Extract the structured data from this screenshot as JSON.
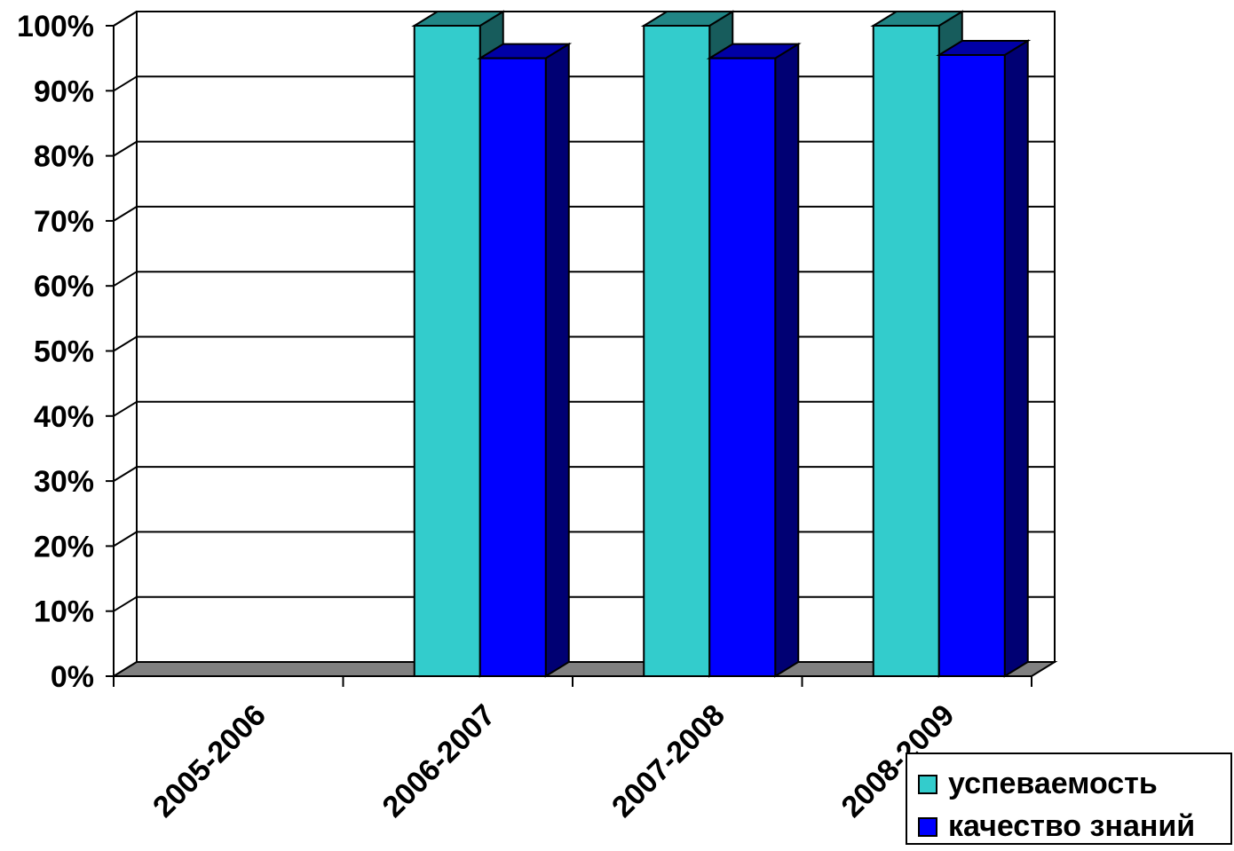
{
  "chart_data": {
    "type": "bar",
    "categories": [
      "2005-2006",
      "2006-2007",
      "2007-2008",
      "2008-2009"
    ],
    "series": [
      {
        "name": "успеваемость",
        "values": [
          0,
          100,
          100,
          100
        ],
        "color": "#33CCCC"
      },
      {
        "name": "качество знаний",
        "values": [
          0,
          95,
          95,
          95.5
        ],
        "color": "#0000FF"
      }
    ],
    "y_ticks": [
      "0%",
      "10%",
      "20%",
      "30%",
      "40%",
      "50%",
      "60%",
      "70%",
      "80%",
      "90%",
      "100%"
    ],
    "ylim": [
      0,
      100
    ],
    "title": "",
    "xlabel": "",
    "ylabel": "",
    "grid": true,
    "legend": "bottom-right",
    "style": "3d-column"
  },
  "legend": {
    "items": [
      {
        "label": "успеваемость",
        "color": "#33CCCC"
      },
      {
        "label": "качество знаний",
        "color": "#0000FF"
      }
    ]
  }
}
